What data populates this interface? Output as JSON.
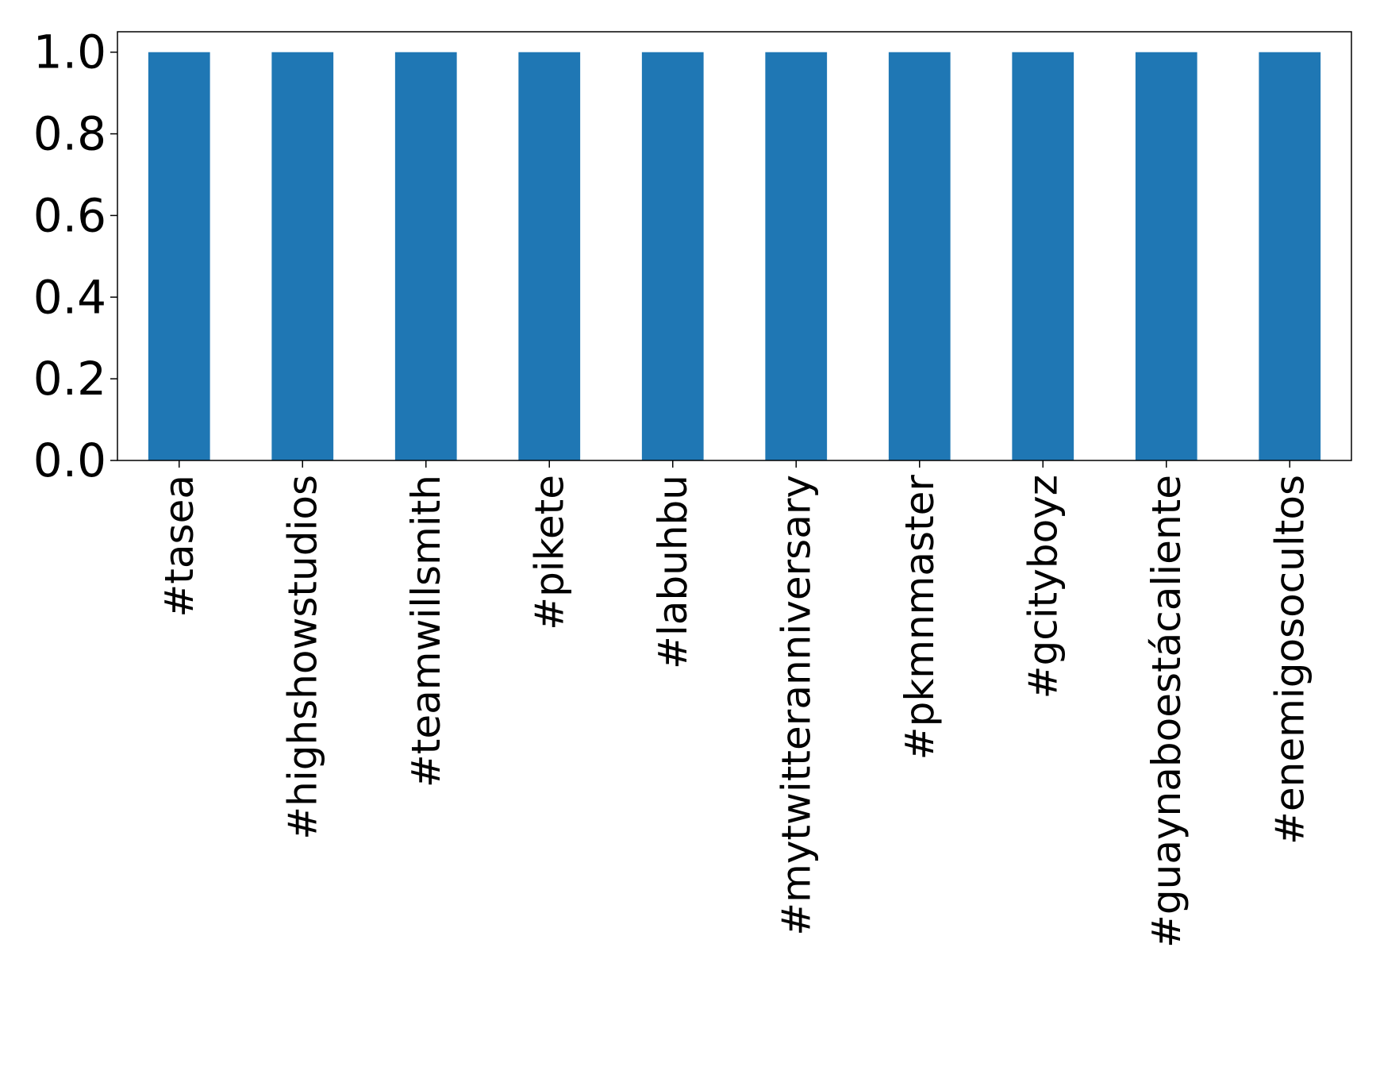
{
  "chart_data": {
    "type": "bar",
    "categories": [
      "#tasea",
      "#highshowstudios",
      "#teamwillsmith",
      "#pikete",
      "#labuhbu",
      "#mytwitteranniversary",
      "#pkmnmaster",
      "#gcityboyz",
      "#guaynaboestácaliente",
      "#enemigosocultos"
    ],
    "values": [
      1.0,
      1.0,
      1.0,
      1.0,
      1.0,
      1.0,
      1.0,
      1.0,
      1.0,
      1.0
    ],
    "title": "",
    "xlabel": "",
    "ylabel": "",
    "ylim": [
      0,
      1.05
    ],
    "yticks": [
      "0.0",
      "0.2",
      "0.4",
      "0.6",
      "0.8",
      "1.0"
    ],
    "grid": false,
    "legend": "none",
    "bar_color": "#1f77b4"
  }
}
